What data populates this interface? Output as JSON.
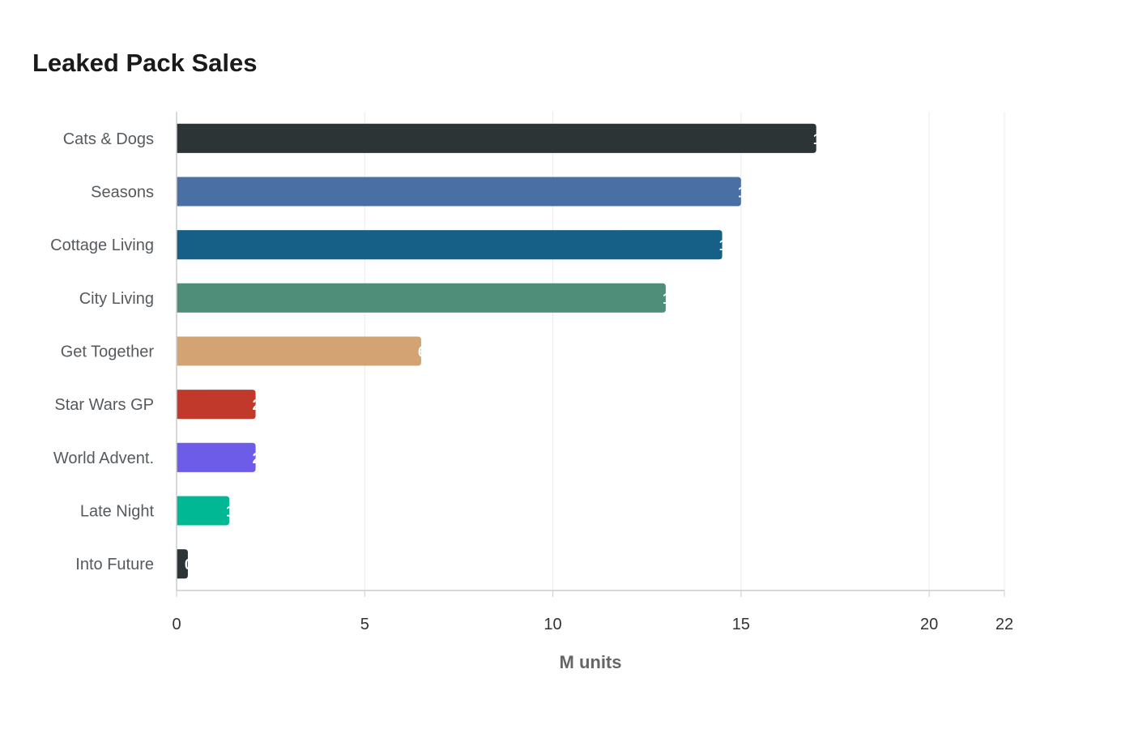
{
  "chart_data": {
    "type": "bar",
    "orientation": "horizontal",
    "title": "Leaked Pack Sales",
    "xlabel": "M units",
    "ylabel": "",
    "xlim": [
      0,
      22
    ],
    "xticks": [
      0,
      5,
      10,
      15,
      20,
      22
    ],
    "grid": true,
    "categories": [
      "Cats & Dogs",
      "Seasons",
      "Cottage Living",
      "City Living",
      "Get Together",
      "Star Wars GP",
      "World Advent.",
      "Late Night",
      "Into Future"
    ],
    "values": [
      17,
      15,
      14.5,
      13,
      6.5,
      2.1,
      2.1,
      1.4,
      0.3
    ],
    "colors": [
      "#2d3436",
      "#4a6fa5",
      "#166088",
      "#4f8f7a",
      "#d4a373",
      "#c0392b",
      "#6c5ce7",
      "#00b894",
      "#2d3436"
    ]
  }
}
